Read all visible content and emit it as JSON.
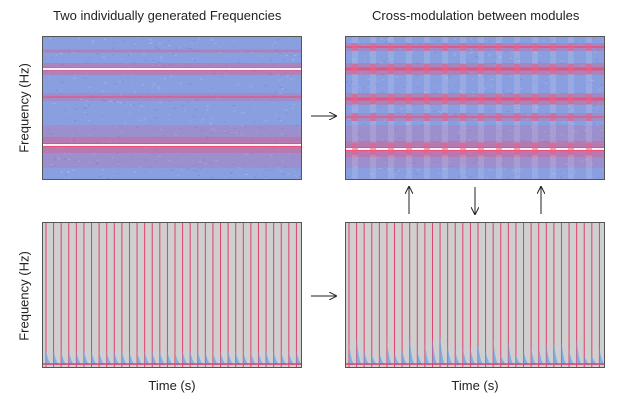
{
  "titles": {
    "left": "Two individually generated Frequencies",
    "right": "Cross-modulation between modules"
  },
  "axes": {
    "y_top_left": "Frequency (Hz)",
    "y_bottom_left": "Frequency (Hz)",
    "x_bottom_left": "Time (s)",
    "x_bottom_right": "Time (s)"
  },
  "colors": {
    "spectro_base": "#8a9fe0",
    "spectro_band": "#e8507a",
    "spectro_core": "#ffffff",
    "pulse_bg": "#cfcfcf",
    "pulse_line": "#e0406a",
    "pulse_tail": "#6fa8e8"
  },
  "pulse_counts": {
    "bottom_left": 34,
    "bottom_right": 34
  }
}
